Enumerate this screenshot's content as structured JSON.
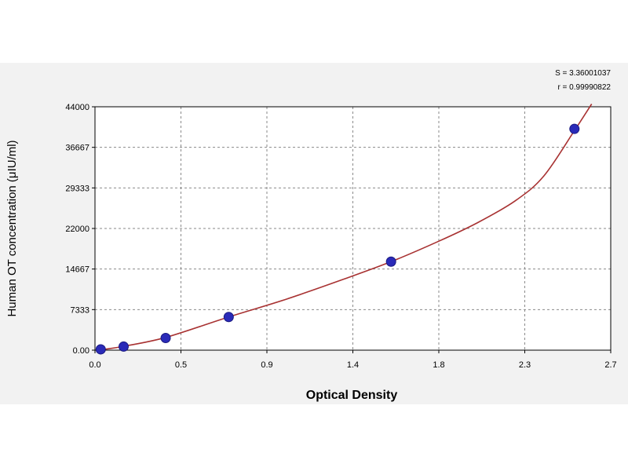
{
  "chart_data": {
    "type": "scatter",
    "title": "",
    "xlabel": "Optical Density",
    "ylabel": "Human OT concentration (μIU/ml)",
    "xlim": [
      0,
      2.7
    ],
    "ylim": [
      0,
      44000
    ],
    "x_tick_labels": [
      "0.0",
      "0.5",
      "0.9",
      "1.4",
      "1.8",
      "2.3",
      "2.7"
    ],
    "y_tick_labels": [
      "0.00",
      "7333",
      "14667",
      "22000",
      "29333",
      "36667",
      "44000"
    ],
    "grid": true,
    "fit_stats": [
      "S = 3.36001037",
      "r = 0.99990822"
    ],
    "series": [
      {
        "type": "points",
        "x": [
          0.03,
          0.15,
          0.37,
          0.7,
          1.55,
          2.51
        ],
        "y": [
          150,
          650,
          2200,
          6000,
          16000,
          40000
        ]
      },
      {
        "type": "fitted-curve",
        "x": [
          0.05,
          0.15,
          0.37,
          0.7,
          1.0,
          1.3,
          1.55,
          1.8,
          2.0,
          2.2,
          2.35,
          2.51,
          2.6
        ],
        "y": [
          150,
          700,
          2300,
          6000,
          9200,
          12800,
          16000,
          19700,
          23000,
          27000,
          31500,
          39700,
          44500
        ]
      }
    ],
    "colors": {
      "point": "#2a2ab8",
      "point_edge": "#1a1a80",
      "curve": "#a83232",
      "grid": "#8a8a8a",
      "axis": "#000000",
      "panel_bg": "#f2f2f2"
    }
  }
}
